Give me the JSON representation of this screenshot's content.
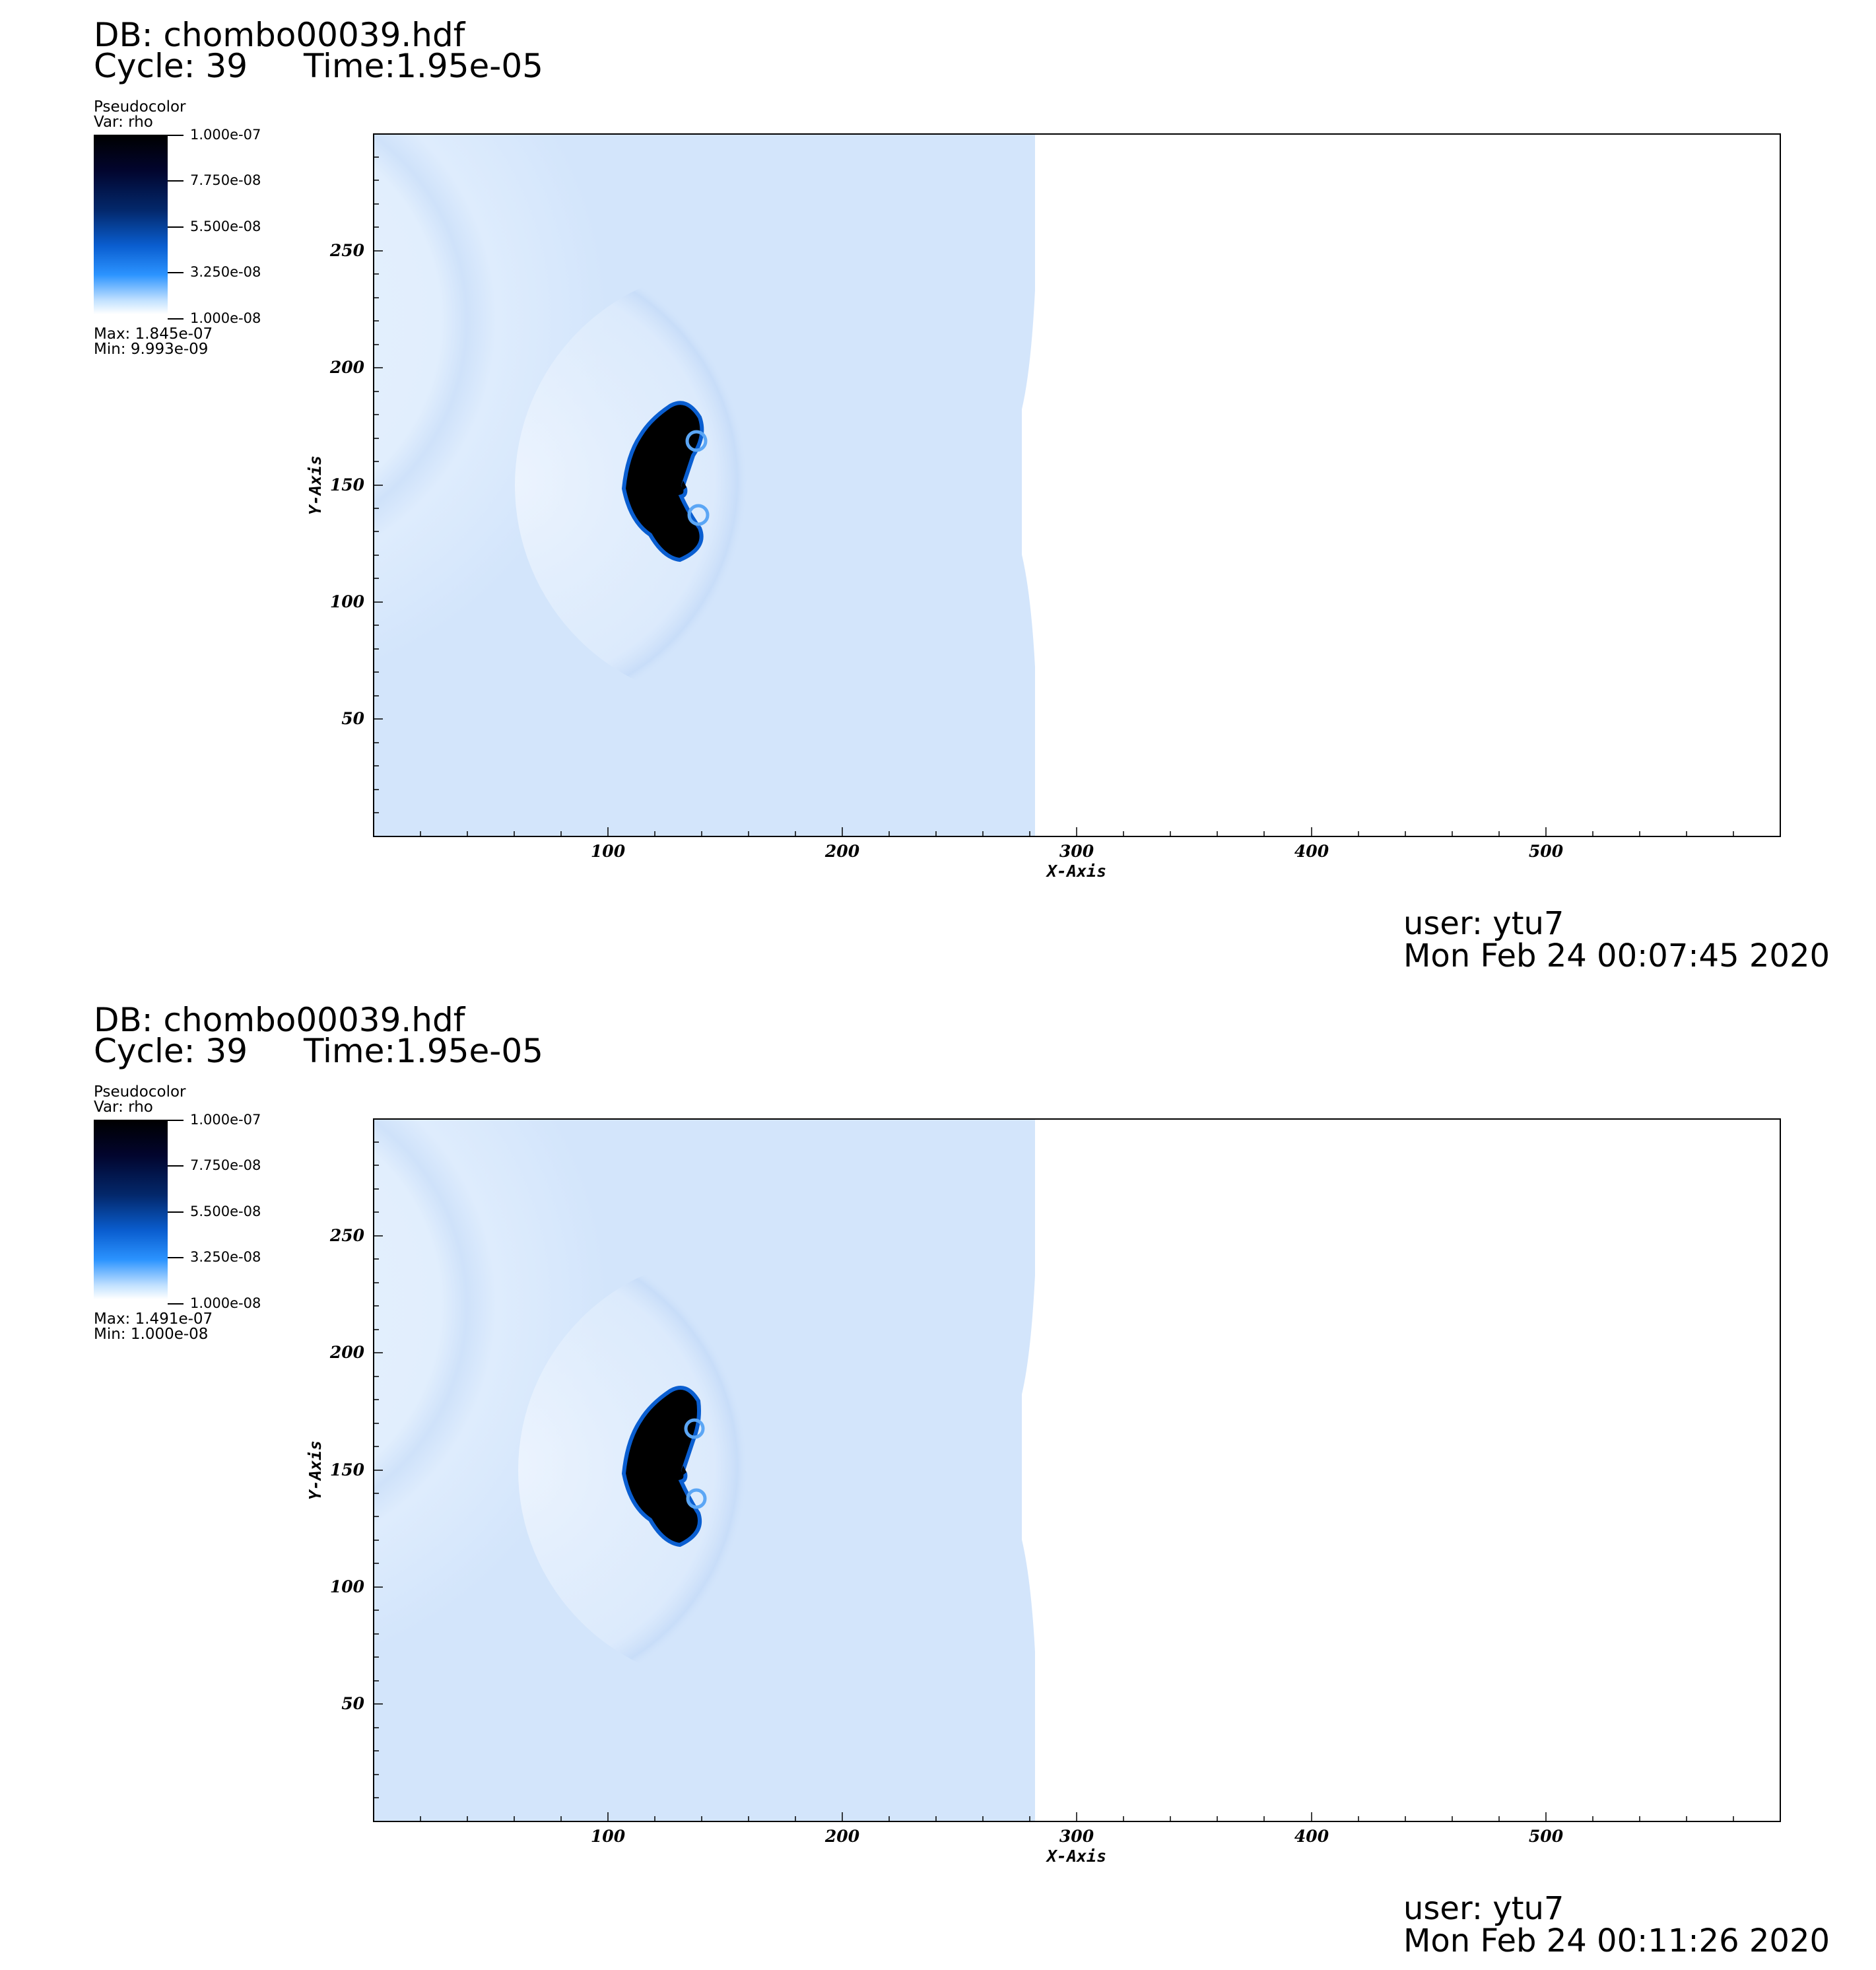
{
  "panels": [
    {
      "db": "DB: chombo00039.hdf",
      "cycle": "Cycle: 39",
      "time": "Time:1.95e-05",
      "legend": {
        "title": "Pseudocolor",
        "var": "Var: rho",
        "ticks": [
          "1.000e-07",
          "7.750e-08",
          "5.500e-08",
          "3.250e-08",
          "1.000e-08"
        ],
        "max": "Max:  1.845e-07",
        "min": "Min:  9.993e-09"
      },
      "plot": {
        "x_title": "X-Axis",
        "y_title": "Y-Axis",
        "x_ticks": [
          "100",
          "200",
          "300",
          "400",
          "500"
        ],
        "y_ticks": [
          "250",
          "200",
          "150",
          "100",
          "50"
        ]
      },
      "user": "user: ytu7",
      "date": "Mon Feb 24 00:07:45 2020"
    },
    {
      "db": "DB: chombo00039.hdf",
      "cycle": "Cycle: 39",
      "time": "Time:1.95e-05",
      "legend": {
        "title": "Pseudocolor",
        "var": "Var: rho",
        "ticks": [
          "1.000e-07",
          "7.750e-08",
          "5.500e-08",
          "3.250e-08",
          "1.000e-08"
        ],
        "max": "Max:  1.491e-07",
        "min": "Min:  1.000e-08"
      },
      "plot": {
        "x_title": "X-Axis",
        "y_title": "Y-Axis",
        "x_ticks": [
          "100",
          "200",
          "300",
          "400",
          "500"
        ],
        "y_ticks": [
          "250",
          "200",
          "150",
          "100",
          "50"
        ]
      },
      "user": "user: ytu7",
      "date": "Mon Feb 24 00:11:26 2020"
    }
  ],
  "colors": {
    "field_light": "#dcebfd",
    "field_ring": "#c9def9",
    "blob_core": "#000000",
    "blob_edge": "#0a5ed0",
    "background": "#ffffff"
  }
}
